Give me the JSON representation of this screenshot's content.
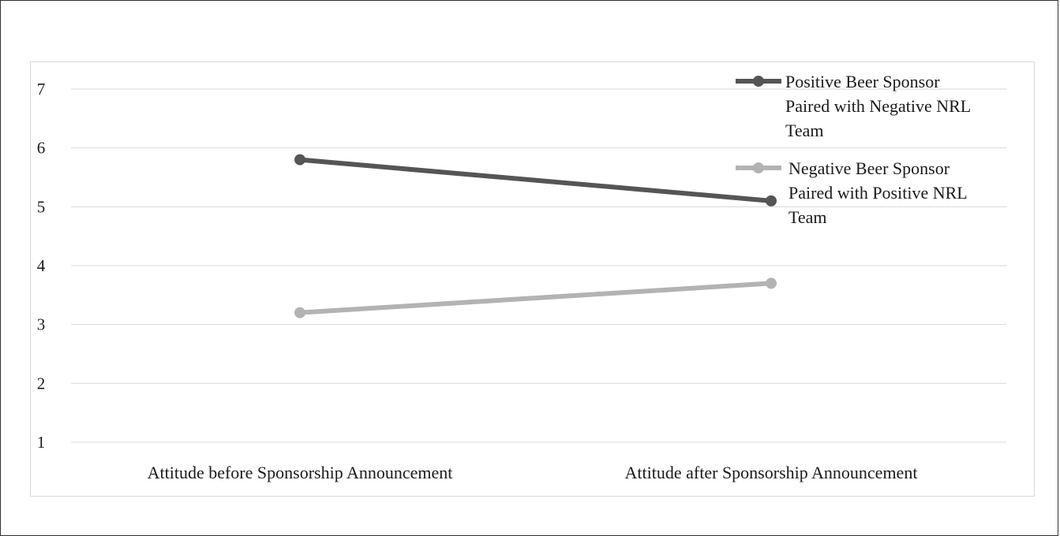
{
  "chart_data": {
    "type": "line",
    "title": "",
    "xlabel": "",
    "ylabel": "",
    "categories": [
      "Attitude before Sponsorship Announcement",
      "Attitude after Sponsorship Announcement"
    ],
    "series": [
      {
        "name": "Positive Beer Sponsor Paired with Negative NRL Team",
        "name_lines": [
          "Positive Beer Sponsor",
          "Paired with Negative NRL",
          "Team"
        ],
        "values": [
          5.8,
          5.1
        ],
        "color": "#555555"
      },
      {
        "name": "Negative Beer Sponsor Paired with Positive NRL Team",
        "name_lines": [
          "Negative Beer Sponsor",
          "Paired with Positive NRL",
          "Team"
        ],
        "values": [
          3.2,
          3.7
        ],
        "color": "#b3b3b3"
      }
    ],
    "ylim": [
      1,
      7
    ],
    "yticks": [
      "1",
      "2",
      "3",
      "4",
      "5",
      "6",
      "7"
    ],
    "grid": true,
    "legend_position": "top-right"
  }
}
